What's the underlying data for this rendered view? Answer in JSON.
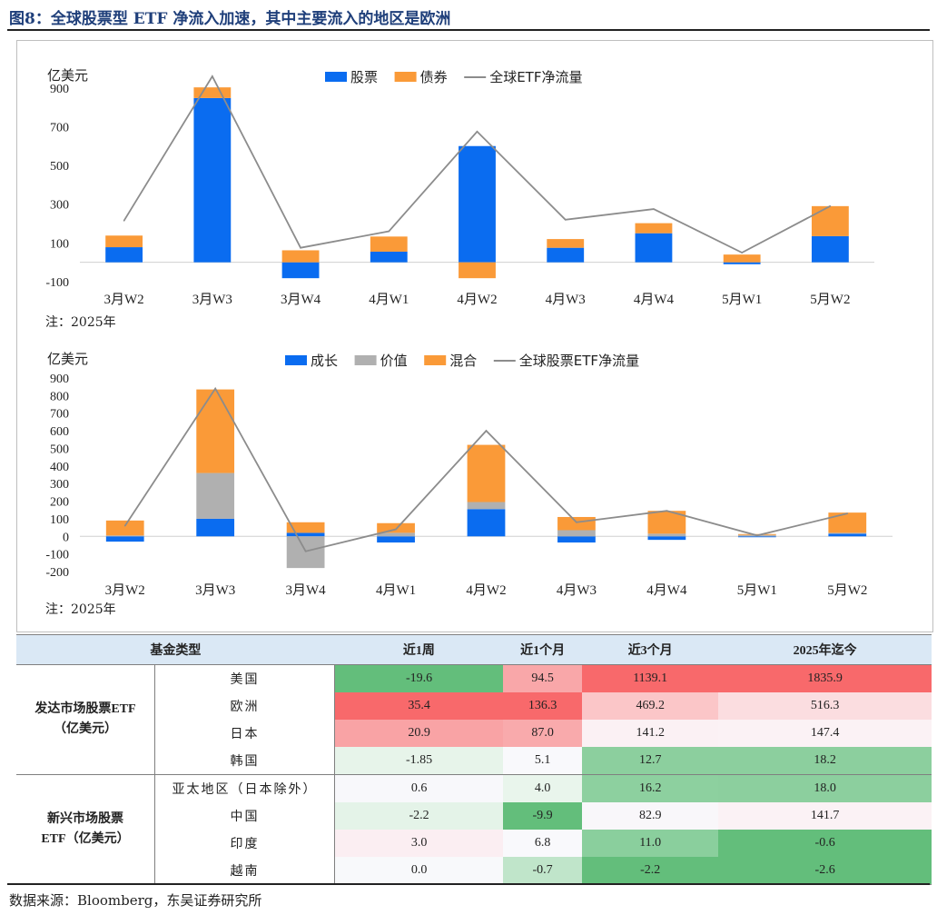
{
  "title": "图8：全球股票型 ETF 净流入加速，其中主要流入的地区是欧洲",
  "source": "数据来源：Bloomberg，东吴证券研究所",
  "chart_data": [
    {
      "type": "bar",
      "stacked": true,
      "unit_label": "亿美元",
      "note": "注：2025年",
      "categories": [
        "3月W2",
        "3月W3",
        "3月W4",
        "4月W1",
        "4月W2",
        "4月W3",
        "4月W4",
        "5月W1",
        "5月W2"
      ],
      "ylim": [
        -100,
        960
      ],
      "yticks": [
        -100,
        100,
        300,
        500,
        700,
        900
      ],
      "legend_position": "top",
      "series": [
        {
          "name": "股票",
          "kind": "bar",
          "color": "#0a6cf0",
          "values": [
            78,
            848,
            -82,
            55,
            600,
            75,
            150,
            -10,
            135
          ]
        },
        {
          "name": "债券",
          "kind": "bar",
          "color": "#fa9a38",
          "values": [
            60,
            55,
            62,
            78,
            -82,
            45,
            52,
            40,
            155
          ]
        },
        {
          "name": "全球ETF净流量",
          "kind": "line",
          "color": "#8c8c8c",
          "values": [
            215,
            960,
            75,
            160,
            675,
            220,
            275,
            50,
            290
          ]
        }
      ]
    },
    {
      "type": "bar",
      "stacked": true,
      "unit_label": "亿美元",
      "note": "注：2025年",
      "categories": [
        "3月W2",
        "3月W3",
        "3月W4",
        "4月W1",
        "4月W2",
        "4月W3",
        "4月W4",
        "5月W1",
        "5月W2"
      ],
      "ylim": [
        -200,
        900
      ],
      "yticks": [
        -200,
        -100,
        0,
        100,
        200,
        300,
        400,
        500,
        600,
        700,
        800,
        900
      ],
      "legend_position": "top",
      "series": [
        {
          "name": "成长",
          "kind": "bar",
          "color": "#0a6cf0",
          "values": [
            -30,
            100,
            20,
            -35,
            155,
            -35,
            -20,
            -5,
            15
          ]
        },
        {
          "name": "价值",
          "kind": "bar",
          "color": "#b0b0b0",
          "values": [
            5,
            260,
            -180,
            20,
            40,
            35,
            15,
            8,
            5
          ]
        },
        {
          "name": "混合",
          "kind": "bar",
          "color": "#fa9a38",
          "values": [
            85,
            475,
            60,
            55,
            325,
            75,
            130,
            5,
            115
          ]
        },
        {
          "name": "全球股票ETF净流量",
          "kind": "line",
          "color": "#8c8c8c",
          "values": [
            60,
            840,
            -85,
            40,
            600,
            80,
            145,
            5,
            130
          ]
        }
      ]
    },
    {
      "type": "table",
      "headers": [
        "基金类型",
        "近1周",
        "近1个月",
        "近3个月",
        "2025年迄今"
      ],
      "groups": [
        {
          "label": [
            "发达市场股票ETF",
            "（亿美元）"
          ],
          "rows": [
            {
              "name": "美国",
              "cells": [
                {
                  "v": "-19.6",
                  "bg": "#63be7b"
                },
                {
                  "v": "94.5",
                  "bg": "#f9a7a9"
                },
                {
                  "v": "1139.1",
                  "bg": "#f8696b"
                },
                {
                  "v": "1835.9",
                  "bg": "#f8696b"
                }
              ]
            },
            {
              "name": "欧洲",
              "cells": [
                {
                  "v": "35.4",
                  "bg": "#f8696b"
                },
                {
                  "v": "136.3",
                  "bg": "#f8696b"
                },
                {
                  "v": "469.2",
                  "bg": "#fbc6c8"
                },
                {
                  "v": "516.3",
                  "bg": "#fbdde0"
                }
              ]
            },
            {
              "name": "日本",
              "cells": [
                {
                  "v": "20.9",
                  "bg": "#f9a3a5"
                },
                {
                  "v": "87.0",
                  "bg": "#f9aaac"
                },
                {
                  "v": "141.2",
                  "bg": "#fbf1f4"
                },
                {
                  "v": "147.4",
                  "bg": "#fbf2f5"
                }
              ]
            },
            {
              "name": "韩国",
              "cells": [
                {
                  "v": "-1.85",
                  "bg": "#e7f4ea"
                },
                {
                  "v": "5.1",
                  "bg": "#f9f9fc"
                },
                {
                  "v": "12.7",
                  "bg": "#8ccf9e"
                },
                {
                  "v": "18.2",
                  "bg": "#8ccf9e"
                }
              ]
            }
          ]
        },
        {
          "label": [
            "新兴市场股票",
            "ETF（亿美元）"
          ],
          "rows": [
            {
              "name": "亚太地区（日本除外）",
              "cells": [
                {
                  "v": "0.6",
                  "bg": "#f8f8fb"
                },
                {
                  "v": "4.0",
                  "bg": "#e9f5ec"
                },
                {
                  "v": "16.2",
                  "bg": "#8dd09f"
                },
                {
                  "v": "18.0",
                  "bg": "#8ccf9e"
                }
              ]
            },
            {
              "name": "中国",
              "cells": [
                {
                  "v": "-2.2",
                  "bg": "#e4f3e8"
                },
                {
                  "v": "-9.9",
                  "bg": "#63be7b"
                },
                {
                  "v": "82.9",
                  "bg": "#f9f7fa"
                },
                {
                  "v": "141.7",
                  "bg": "#fbf2f5"
                }
              ]
            },
            {
              "name": "印度",
              "cells": [
                {
                  "v": "3.0",
                  "bg": "#fbeef2"
                },
                {
                  "v": "6.8",
                  "bg": "#f9f9fc"
                },
                {
                  "v": "11.0",
                  "bg": "#8acf9d"
                },
                {
                  "v": "-0.6",
                  "bg": "#63be7b"
                }
              ]
            },
            {
              "name": "越南",
              "cells": [
                {
                  "v": "0.0",
                  "bg": "#f8f9fb"
                },
                {
                  "v": "-0.7",
                  "bg": "#c0e5ca"
                },
                {
                  "v": "-2.2",
                  "bg": "#63be7b"
                },
                {
                  "v": "-2.6",
                  "bg": "#63be7b"
                }
              ]
            }
          ]
        }
      ]
    }
  ]
}
